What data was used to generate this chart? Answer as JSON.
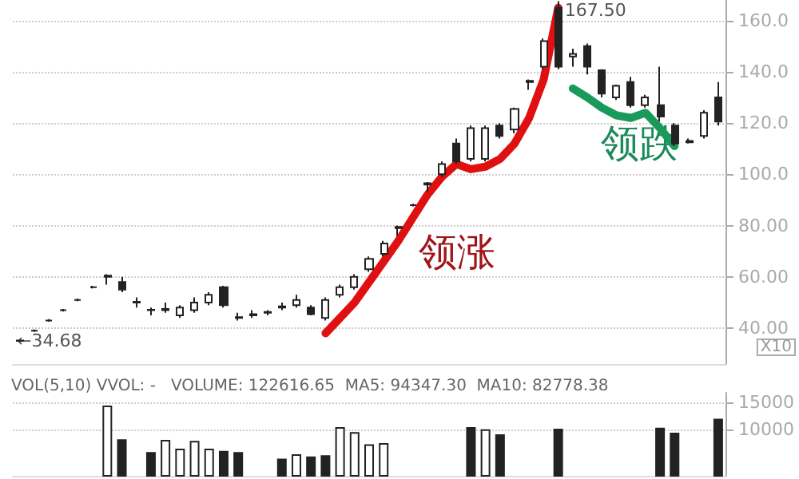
{
  "chart_data": [
    {
      "type": "candlestick",
      "categories": [
        null,
        null,
        null,
        null,
        null,
        null,
        null,
        null,
        null,
        null,
        null,
        null,
        null,
        null,
        null,
        null,
        null,
        null,
        null,
        null,
        null,
        null,
        null,
        null,
        null,
        null,
        null,
        null,
        null,
        null,
        null,
        null,
        null,
        null,
        null,
        null,
        null,
        null,
        null,
        null,
        null,
        null,
        null,
        null,
        null,
        null,
        null,
        null,
        null
      ],
      "ohlc": [
        [
          35,
          35.5,
          34.68,
          35.2
        ],
        [
          39,
          39.5,
          38.5,
          39
        ],
        [
          43,
          43.5,
          42.5,
          43
        ],
        [
          47,
          47.5,
          46.5,
          47
        ],
        [
          51,
          51.5,
          50.5,
          51
        ],
        [
          56,
          56.5,
          55.5,
          56
        ],
        [
          60,
          61,
          57,
          60.5
        ],
        [
          58,
          60,
          54,
          55
        ],
        [
          50,
          52,
          48,
          50.3
        ],
        [
          47,
          48,
          45,
          47.2
        ],
        [
          47,
          50,
          46,
          47.5
        ],
        [
          45,
          49,
          44,
          48
        ],
        [
          47,
          52,
          46,
          50
        ],
        [
          50,
          54,
          49,
          53
        ],
        [
          56,
          56.5,
          48,
          49
        ],
        [
          44,
          46,
          43,
          44.3
        ],
        [
          45,
          47,
          44,
          45.5
        ],
        [
          46,
          47,
          45,
          46.3
        ],
        [
          48,
          50,
          47,
          48.5
        ],
        [
          49,
          53,
          48,
          51
        ],
        [
          48,
          49,
          45,
          45.5
        ],
        [
          44,
          52,
          43,
          51
        ],
        [
          53,
          57,
          52,
          56
        ],
        [
          56,
          61,
          55,
          60
        ],
        [
          63,
          68,
          62,
          67
        ],
        [
          69,
          74,
          68,
          73
        ],
        [
          79,
          80,
          76,
          79.5
        ],
        [
          88,
          88.5,
          87.5,
          88
        ],
        [
          96,
          97,
          93,
          96.5
        ],
        [
          100,
          105,
          99,
          104
        ],
        [
          112,
          114,
          104,
          105
        ],
        [
          106,
          119,
          105,
          118
        ],
        [
          106,
          119,
          105,
          118
        ],
        [
          119,
          120,
          114,
          115
        ],
        [
          117.5,
          126,
          116,
          125.5
        ],
        [
          136,
          137,
          133,
          136.5
        ],
        [
          142,
          153,
          141,
          152
        ],
        [
          165,
          167.5,
          141,
          142
        ],
        [
          146,
          149,
          142,
          147
        ],
        [
          150,
          151,
          139,
          142
        ],
        [
          140.6,
          141,
          130,
          131.5
        ],
        [
          130,
          135,
          129,
          134.5
        ],
        [
          136,
          138,
          126,
          127
        ],
        [
          127,
          131,
          126,
          130
        ],
        [
          127,
          142,
          120.6,
          122.5
        ],
        [
          119,
          120,
          111,
          112
        ],
        [
          112.5,
          114,
          112,
          113
        ],
        [
          115,
          125,
          114,
          124
        ],
        [
          130,
          136,
          119,
          120.6
        ]
      ],
      "color": "#222222",
      "series": [
        {
          "type": "line",
          "color": "#e01010",
          "values": [
            null,
            null,
            null,
            null,
            null,
            null,
            null,
            null,
            null,
            null,
            null,
            null,
            null,
            null,
            null,
            null,
            null,
            null,
            null,
            null,
            null,
            38,
            44,
            50,
            58,
            66,
            74,
            83,
            92,
            99,
            104,
            102,
            103,
            106,
            112,
            122,
            137,
            165,
            null,
            null,
            null,
            null,
            null,
            null,
            null,
            null,
            null,
            null,
            null
          ]
        },
        {
          "type": "line",
          "color": "#1a9a5a",
          "values": [
            null,
            null,
            null,
            null,
            null,
            null,
            null,
            null,
            null,
            null,
            null,
            null,
            null,
            null,
            null,
            null,
            null,
            null,
            null,
            null,
            null,
            null,
            null,
            null,
            null,
            null,
            null,
            null,
            null,
            null,
            null,
            null,
            null,
            null,
            null,
            null,
            null,
            null,
            133.5,
            130,
            126,
            123,
            122,
            124,
            118,
            111,
            null,
            null,
            null
          ]
        }
      ],
      "ylim": [
        26,
        168
      ],
      "yticks": [
        {
          "value": 40,
          "label": "40.00"
        },
        {
          "value": 60,
          "label": "60.00"
        },
        {
          "value": 80,
          "label": "80.00"
        },
        {
          "value": 100,
          "label": "100.0"
        },
        {
          "value": 120,
          "label": "120.0"
        },
        {
          "value": 140,
          "label": "140.0"
        },
        {
          "value": 160,
          "label": "160.0"
        }
      ],
      "grid": "y",
      "tick_labels": "y",
      "annotations": [
        "←34.68",
        "167.50",
        "领涨",
        "领跌",
        "X10"
      ]
    },
    {
      "type": "bar",
      "title": "VOL(5,10) VVOL: -   VOLUME: 122616.65  MA5: 94347.30  MA10: 82778.38",
      "categories": [
        null,
        null,
        null,
        null,
        null,
        null,
        null,
        null,
        null,
        null,
        null,
        null,
        null,
        null,
        null,
        null,
        null,
        null,
        null,
        null,
        null,
        null,
        null,
        null,
        null,
        null,
        null,
        null,
        null,
        null,
        null,
        null,
        null,
        null,
        null,
        null,
        null,
        null,
        null,
        null,
        null,
        null,
        null,
        null,
        null,
        null,
        null,
        null,
        null
      ],
      "values": [
        null,
        null,
        null,
        null,
        null,
        null,
        14400,
        8300,
        null,
        6000,
        8200,
        6600,
        8000,
        6600,
        6200,
        6000,
        null,
        null,
        4800,
        5600,
        5200,
        5400,
        10500,
        9600,
        7400,
        7600,
        null,
        null,
        null,
        null,
        null,
        10500,
        10100,
        9200,
        null,
        null,
        null,
        10200,
        null,
        null,
        null,
        null,
        null,
        null,
        10400,
        9500,
        null,
        null,
        12000
      ],
      "colors": [
        "#222222",
        "#222222",
        "#222222",
        "#222222",
        "#222222",
        "#222222",
        "#ffffff",
        "#222222",
        "#222222",
        "#222222",
        "#ffffff",
        "#ffffff",
        "#ffffff",
        "#ffffff",
        "#222222",
        "#222222",
        "#222222",
        "#222222",
        "#222222",
        "#ffffff",
        "#222222",
        "#222222",
        "#ffffff",
        "#ffffff",
        "#ffffff",
        "#ffffff",
        "#222222",
        "#222222",
        "#222222",
        "#222222",
        "#222222",
        "#222222",
        "#ffffff",
        "#222222",
        "#222222",
        "#222222",
        "#222222",
        "#222222",
        "#222222",
        "#222222",
        "#222222",
        "#222222",
        "#222222",
        "#222222",
        "#222222",
        "#222222",
        "#222222",
        "#222222",
        "#222222"
      ],
      "ylim": [
        1700,
        16700
      ],
      "yticks": [
        10000,
        15000
      ],
      "grid": "y",
      "tick_labels": "y"
    }
  ]
}
